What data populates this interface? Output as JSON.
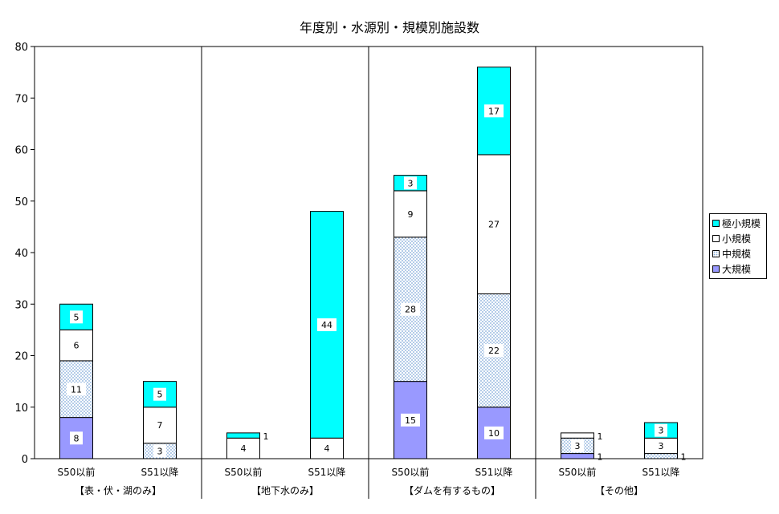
{
  "chart_data": {
    "type": "bar",
    "stacked": true,
    "title": "年度別・水源別・規模別施設数",
    "ylim": [
      0,
      80
    ],
    "yticks": [
      0,
      10,
      20,
      30,
      40,
      50,
      60,
      70,
      80
    ],
    "groups": [
      {
        "label": "【表・伏・湖のみ】",
        "categories": [
          "S50以前",
          "S51以降"
        ]
      },
      {
        "label": "【地下水のみ】",
        "categories": [
          "S50以前",
          "S51以降"
        ]
      },
      {
        "label": "【ダムを有するもの】",
        "categories": [
          "S50以前",
          "S51以降"
        ]
      },
      {
        "label": "【その他】",
        "categories": [
          "S50以前",
          "S51以降"
        ]
      }
    ],
    "series": [
      {
        "name": "大規模",
        "color": "#9999ff",
        "pattern": "solid",
        "values": [
          8,
          0,
          0,
          0,
          15,
          10,
          1,
          0
        ]
      },
      {
        "name": "中規模",
        "color": "#bcd4ee",
        "pattern": "dots",
        "values": [
          11,
          3,
          0,
          0,
          28,
          22,
          3,
          1
        ]
      },
      {
        "name": "小規模",
        "color": "#ffffff",
        "pattern": "solid",
        "values": [
          6,
          7,
          4,
          4,
          9,
          27,
          1,
          3
        ]
      },
      {
        "name": "極小規模",
        "color": "#00ffff",
        "pattern": "solid",
        "values": [
          5,
          5,
          1,
          44,
          3,
          17,
          0,
          3
        ]
      }
    ],
    "data_labels": [
      [
        "8",
        "11",
        "6",
        "5"
      ],
      [
        "",
        "3",
        "7",
        "5"
      ],
      [
        "",
        "",
        "4",
        "1"
      ],
      [
        "",
        "",
        "4",
        "44"
      ],
      [
        "15",
        "28",
        "9",
        "3"
      ],
      [
        "10",
        "22",
        "27",
        "17"
      ],
      [
        "1",
        "3",
        "1",
        ""
      ],
      [
        "",
        "1",
        "3",
        "3"
      ]
    ],
    "legend": {
      "position": "right",
      "order": [
        "極小規模",
        "小規模",
        "中規模",
        "大規模"
      ]
    }
  }
}
